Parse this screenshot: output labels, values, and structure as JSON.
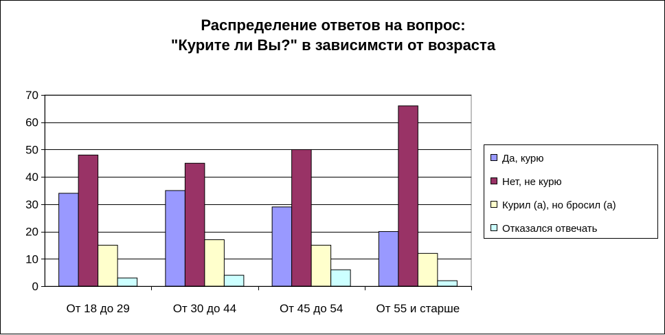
{
  "chart_data": {
    "type": "bar",
    "title_lines": [
      "Распределение ответов на вопрос:",
      "\"Курите ли Вы?\" в зависимсти от возраста"
    ],
    "xlabel": "",
    "ylabel": "",
    "categories": [
      "От 18 до 29",
      "От 30 до 44",
      "От 45 до 54",
      "От 55 и старше"
    ],
    "series": [
      {
        "name": "Да, курю",
        "values": [
          34,
          35,
          29,
          20
        ],
        "color": "#9999ff"
      },
      {
        "name": "Нет, не курю",
        "values": [
          48,
          45,
          50,
          66
        ],
        "color": "#993366"
      },
      {
        "name": "Курил (а), но бросил (а)",
        "values": [
          15,
          17,
          15,
          12
        ],
        "color": "#ffffcc"
      },
      {
        "name": "Отказался отвечать",
        "values": [
          3,
          4,
          6,
          2
        ],
        "color": "#ccffff"
      }
    ],
    "ylim": [
      0,
      70
    ],
    "yticks": [
      0,
      10,
      20,
      30,
      40,
      50,
      60,
      70
    ],
    "grid": true,
    "legend_position": "right",
    "plot_background": "#ffffff"
  }
}
